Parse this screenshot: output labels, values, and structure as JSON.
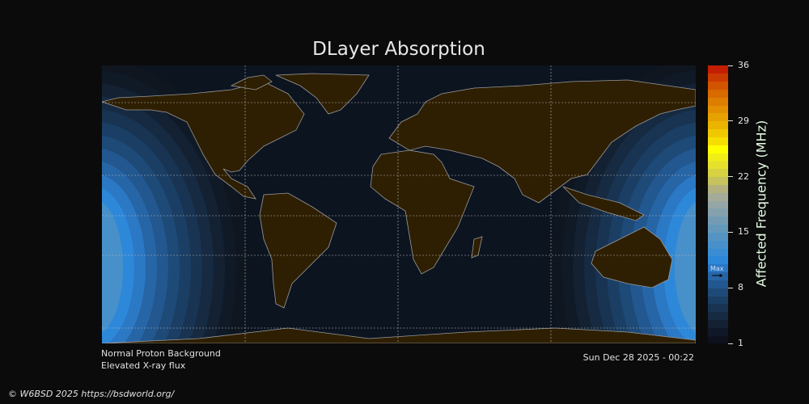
{
  "title": "DLayer Absorption",
  "colorbar": {
    "label": "Affected Frequency (MHz)",
    "ticks": [
      "36",
      "29",
      "22",
      "15",
      "8",
      "1"
    ],
    "min": 1,
    "max": 36,
    "max_marker_label": "Max",
    "max_marker_value": 9.5,
    "colors": [
      "#0d111d",
      "#101827",
      "#132133",
      "#162a41",
      "#183452",
      "#1b3f64",
      "#1e4a78",
      "#22578f",
      "#2665a6",
      "#2b78c4",
      "#2e88d9",
      "#3a8dd2",
      "#4890c9",
      "#5594c2",
      "#6498bb",
      "#739cb4",
      "#85a1ad",
      "#95a6a6",
      "#a4ab98",
      "#b3b27e",
      "#c6c25c",
      "#d6d242",
      "#e6e22c",
      "#f1ee18",
      "#ffff00",
      "#f6df00",
      "#f0c800",
      "#eab400",
      "#e6a200",
      "#e29000",
      "#de7e00",
      "#d86a00",
      "#d25400",
      "#cb3a00",
      "#c41e00"
    ]
  },
  "map": {
    "land_color": "#2e1f02",
    "ocean_color": "#0c1420",
    "coast_color": "#9a9a9a",
    "grid_color": "#bbbbbb"
  },
  "footer": {
    "line1": "Normal Proton Background",
    "line2": "Elevated X-ray flux",
    "timestamp": "Sun Dec 28 2025 - 00:22",
    "copyright": "© W6BSD 2025 https://bsdworld.org/"
  }
}
